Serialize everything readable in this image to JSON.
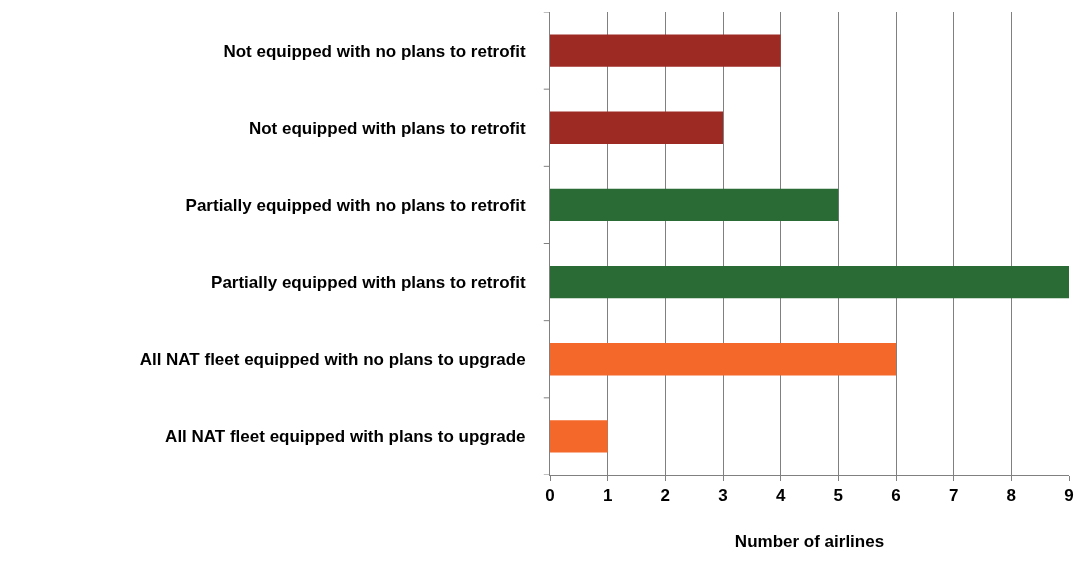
{
  "chart_data": {
    "type": "bar",
    "orientation": "horizontal",
    "xlabel": "Number of airlines",
    "categories": [
      "Not equipped with no plans to retrofit",
      "Not equipped with plans to retrofit",
      "Partially equipped with no plans to retrofit",
      "Partially equipped with plans to retrofit",
      "All NAT fleet equipped with no plans to upgrade",
      "All NAT fleet equipped with plans to upgrade"
    ],
    "values": [
      4,
      3,
      5,
      9,
      6,
      1
    ],
    "colors": [
      "#9e2a24",
      "#9e2a24",
      "#2a6b35",
      "#2a6b35",
      "#f4692a",
      "#f4692a"
    ],
    "xlim": [
      0,
      9
    ],
    "xticks": [
      0,
      1,
      2,
      3,
      4,
      5,
      6,
      7,
      8,
      9
    ],
    "grid": "x",
    "legend": false
  }
}
